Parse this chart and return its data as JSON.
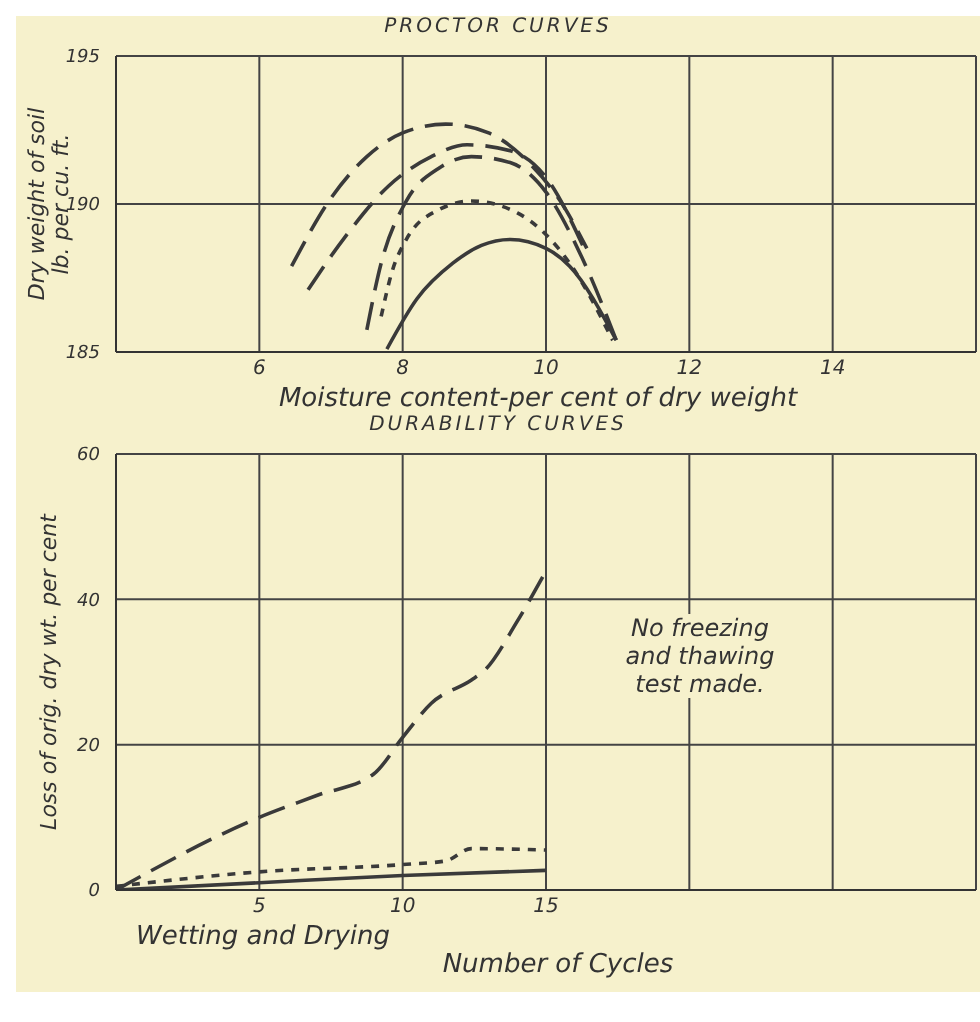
{
  "chart_data": [
    {
      "type": "line",
      "title": "PROCTOR CURVES",
      "xlabel": "Moisture content-per cent of dry weight",
      "ylabel": "Dry weight of soil\nlb. per cu. ft.",
      "xlim": [
        4,
        16
      ],
      "xticks": [
        6,
        8,
        10,
        12,
        14
      ],
      "ylim": [
        185,
        195
      ],
      "yticks": [
        185,
        190,
        195
      ],
      "grid": true,
      "series": [
        {
          "color": "#3a3a3a",
          "line_style": "dashed",
          "x": [
            6.45,
            7,
            7.5,
            8,
            8.6,
            9.2,
            9.8,
            10.2,
            10.57
          ],
          "values": [
            187.9,
            190.2,
            191.6,
            192.4,
            192.7,
            192.4,
            191.3,
            190.1,
            188.5
          ]
        },
        {
          "color": "#3a3a3a",
          "line_style": "dashed",
          "x": [
            6.68,
            7.2,
            7.8,
            8.4,
            8.9,
            9.5,
            10,
            10.55
          ],
          "values": [
            187.1,
            188.9,
            190.6,
            191.6,
            192,
            191.8,
            190.9,
            188.4
          ]
        },
        {
          "color": "#3a3a3a",
          "line_style": "dashed",
          "x": [
            7.5,
            7.7,
            8.05,
            8.5,
            8.96,
            9.5,
            10,
            10.5,
            10.98
          ],
          "values": [
            185.75,
            188,
            190.1,
            191.2,
            191.6,
            191.4,
            190.4,
            188.2,
            185.4
          ]
        },
        {
          "color": "#3a3a3a",
          "line_style": "dotted",
          "x": [
            7.7,
            7.85,
            8.05,
            8.5,
            8.96,
            9.6,
            10.33,
            10.93
          ],
          "values": [
            186.2,
            187.7,
            188.8,
            189.8,
            190.1,
            189.7,
            188,
            185.4
          ]
        },
        {
          "color": "#3a3a3a",
          "line_style": "solid",
          "x": [
            7.78,
            8.2,
            8.7,
            9.1,
            9.5,
            10,
            10.33,
            10.98
          ],
          "values": [
            185.1,
            186.8,
            188,
            188.6,
            188.8,
            188.5,
            187.9,
            185.4
          ]
        }
      ]
    },
    {
      "type": "line",
      "title": "DURABILITY CURVES",
      "xlabel": "Number of Cycles",
      "ylabel": "Loss of orig. dry wt. per cent",
      "xlim": [
        0,
        30
      ],
      "xticks": [
        5,
        10,
        15,
        {
          "value": 20,
          "label": null
        },
        {
          "value": 25,
          "label": null
        }
      ],
      "ylim": [
        0,
        60
      ],
      "yticks": [
        0,
        20,
        40,
        60
      ],
      "grid": true,
      "annotations": [
        "Wetting and Drying",
        "No freezing and thawing test made."
      ],
      "series": [
        {
          "color": "#3a3a3a",
          "line_style": "dashed",
          "x": [
            0,
            5,
            7,
            9,
            10,
            11,
            12.4,
            12.85,
            14,
            14.9
          ],
          "values": [
            0,
            10,
            13,
            16,
            21,
            25.7,
            28.9,
            30.2,
            37,
            43.2
          ]
        },
        {
          "color": "#3a3a3a",
          "line_style": "dotted",
          "x": [
            0,
            5,
            10,
            11.5,
            12.4,
            15
          ],
          "values": [
            0.5,
            2.5,
            3.5,
            4,
            5.7,
            5.5
          ]
        },
        {
          "color": "#3a3a3a",
          "line_style": "solid",
          "x": [
            0,
            5,
            10,
            15
          ],
          "values": [
            0,
            1,
            2,
            2.7
          ]
        }
      ]
    }
  ]
}
